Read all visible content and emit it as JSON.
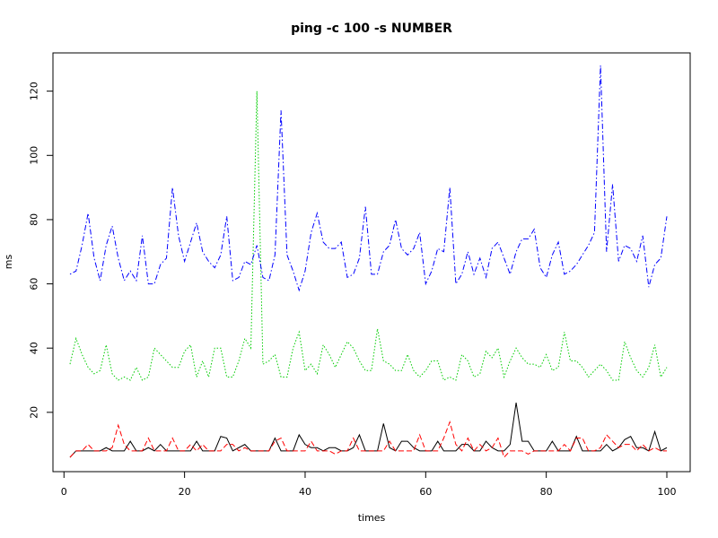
{
  "chart_data": {
    "type": "line",
    "title": "ping -c 100 -s NUMBER",
    "xlabel": "times",
    "ylabel": "ms",
    "xlim": [
      1,
      100
    ],
    "ylim": [
      6,
      128
    ],
    "xticks": [
      0,
      20,
      40,
      60,
      80,
      100
    ],
    "yticks": [
      20,
      40,
      60,
      80,
      100,
      120
    ],
    "x": [
      1,
      2,
      3,
      4,
      5,
      6,
      7,
      8,
      9,
      10,
      11,
      12,
      13,
      14,
      15,
      16,
      17,
      18,
      19,
      20,
      21,
      22,
      23,
      24,
      25,
      26,
      27,
      28,
      29,
      30,
      31,
      32,
      33,
      34,
      35,
      36,
      37,
      38,
      39,
      40,
      41,
      42,
      43,
      44,
      45,
      46,
      47,
      48,
      49,
      50,
      51,
      52,
      53,
      54,
      55,
      56,
      57,
      58,
      59,
      60,
      61,
      62,
      63,
      64,
      65,
      66,
      67,
      68,
      69,
      70,
      71,
      72,
      73,
      74,
      75,
      76,
      77,
      78,
      79,
      80,
      81,
      82,
      83,
      84,
      85,
      86,
      87,
      88,
      89,
      90,
      91,
      92,
      93,
      94,
      95,
      96,
      97,
      98,
      99,
      100
    ],
    "series": [
      {
        "color": "#000000",
        "dash": "solid",
        "values": [
          6,
          8,
          8,
          8,
          8,
          8,
          9,
          8,
          8,
          8,
          11,
          8,
          8,
          9,
          8,
          10,
          8,
          8,
          8,
          8,
          8,
          11,
          8,
          8,
          8,
          12.5,
          12,
          8,
          9,
          10,
          8,
          8,
          8,
          8,
          12,
          8,
          8,
          8,
          13,
          10,
          9,
          9,
          8,
          9,
          9,
          8,
          8,
          9,
          13,
          8,
          8,
          8,
          16.5,
          9,
          8,
          11,
          11,
          9,
          8,
          8,
          8,
          11,
          8,
          8,
          8,
          10,
          10,
          8,
          8,
          11,
          9,
          8,
          8,
          10,
          23,
          11,
          11,
          8,
          8,
          8,
          11,
          8,
          8,
          8,
          12.5,
          8,
          8,
          8,
          8,
          10,
          8,
          9,
          11.5,
          12.5,
          9,
          9,
          8,
          14,
          8,
          9
        ]
      },
      {
        "color": "#ff0000",
        "dash": "dashed",
        "values": [
          6,
          8,
          8,
          10,
          8,
          8,
          8,
          9,
          16,
          10,
          8,
          8,
          8,
          12,
          8,
          8,
          8,
          12,
          8,
          8,
          10,
          8,
          10,
          8,
          8,
          8,
          10,
          10,
          8,
          9,
          8,
          8,
          8,
          8,
          11,
          12,
          8,
          8,
          8,
          8,
          11,
          8,
          8,
          8,
          7,
          8,
          8,
          12,
          8,
          8,
          8,
          8,
          8,
          11,
          8,
          8,
          8,
          8,
          13,
          8,
          8,
          8,
          12,
          17,
          10,
          8,
          12,
          8,
          10,
          8,
          9,
          12,
          6,
          8,
          8,
          8,
          7,
          8,
          8,
          8,
          8,
          8,
          10,
          8,
          12,
          12,
          8,
          8,
          9,
          13,
          11,
          9,
          10,
          10,
          8,
          10,
          8,
          9,
          8,
          8
        ]
      },
      {
        "color": "#00cc00",
        "dash": "dotted",
        "values": [
          35,
          43,
          38,
          34,
          32,
          33,
          41,
          32,
          30,
          31,
          30,
          34,
          30,
          31,
          40,
          38,
          36,
          34,
          34,
          39,
          41,
          31,
          36,
          31,
          40,
          40,
          31,
          31,
          36,
          43,
          40,
          120,
          35,
          36,
          38,
          31,
          31,
          40,
          45,
          33,
          35,
          32,
          41,
          38,
          34,
          38,
          42,
          40,
          36,
          33,
          33,
          46,
          36,
          35,
          33,
          33,
          38,
          33,
          31,
          33,
          36,
          36,
          30,
          31,
          30,
          38,
          36,
          31,
          32,
          39,
          37,
          40,
          31,
          36,
          40,
          37,
          35,
          35,
          34,
          38,
          33,
          34,
          45,
          36,
          36,
          34,
          31,
          33,
          35,
          33,
          30,
          30,
          42,
          37,
          33,
          31,
          34,
          41,
          31,
          34
        ]
      },
      {
        "color": "#0000ff",
        "dash": "dotdash",
        "values": [
          63,
          64,
          72,
          82,
          68,
          61,
          72,
          78,
          68,
          61,
          64,
          61,
          75,
          60,
          60,
          66,
          68,
          90,
          75,
          67,
          73,
          79,
          70,
          67,
          65,
          69,
          81,
          61,
          62,
          67,
          66,
          72,
          62,
          61,
          69,
          114,
          69,
          64,
          58,
          64,
          76,
          82,
          73,
          71,
          71,
          73,
          62,
          63,
          68,
          84,
          63,
          63,
          70,
          72,
          80,
          71,
          69,
          71,
          76,
          60,
          64,
          71,
          70,
          90,
          60,
          63,
          70,
          63,
          68,
          62,
          71,
          73,
          68,
          63,
          70,
          74,
          74,
          77,
          65,
          62,
          69,
          73,
          63,
          64,
          66,
          69,
          72,
          76,
          128,
          70,
          91,
          67,
          72,
          71,
          67,
          75,
          59,
          66,
          68,
          81
        ]
      }
    ]
  }
}
